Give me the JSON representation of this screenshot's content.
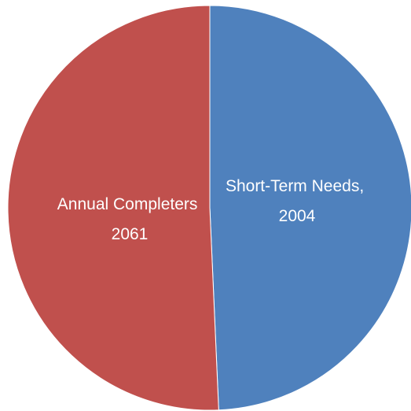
{
  "chart_data": {
    "type": "pie",
    "title": "",
    "slices": [
      {
        "category": "Short-Term Needs",
        "value": 2004,
        "label_line1": "Short-Term Needs,",
        "label_line2": "2004",
        "color": "#4F81BD"
      },
      {
        "category": "Annual Completers",
        "value": 2061,
        "label_line1": "Annual Completers",
        "label_line2": "2061",
        "color": "#C0504D"
      }
    ],
    "start_angle_deg": 0,
    "direction": "clockwise",
    "legend": "none"
  }
}
